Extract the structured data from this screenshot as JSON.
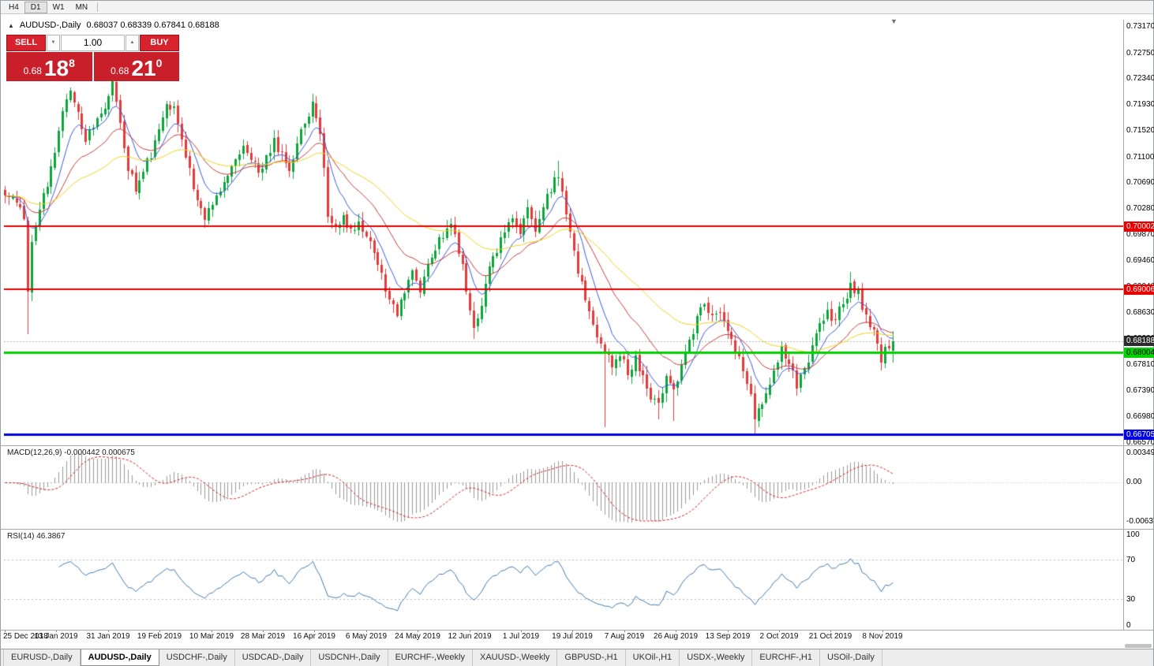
{
  "icons": {
    "one_click_collapse": "▲",
    "chart_shift": "▼",
    "volume_down": "▼",
    "volume_up": "▲"
  },
  "toolbar": {
    "timeframes": [
      "H4",
      "D1",
      "W1",
      "MN"
    ],
    "active_timeframe": "D1"
  },
  "chart_header": {
    "symbol_title": "AUDUSD-,Daily",
    "ohlc_text": "0.68037 0.68339 0.67841 0.68188"
  },
  "trade_panel": {
    "sell_label": "SELL",
    "buy_label": "BUY",
    "volume_value": "1.00",
    "sell_price": {
      "prefix": "0.68",
      "big": "18",
      "sup": "8"
    },
    "buy_price": {
      "prefix": "0.68",
      "big": "21",
      "sup": "0"
    }
  },
  "indicators": {
    "macd": {
      "label": "MACD(12,26,9) -0.000442 0.000675",
      "params": [
        12,
        26,
        9
      ],
      "current_main": -0.000442,
      "current_signal": 0.000675,
      "axis_labels": [
        "0.00349",
        "0.00",
        "-0.00637"
      ]
    },
    "rsi": {
      "label": "RSI(14) 46.3867",
      "period": 14,
      "current": 46.3867,
      "axis_labels": [
        "100",
        "70",
        "30",
        "0"
      ],
      "axis_values": [
        100,
        70,
        30,
        0
      ],
      "level_lines": [
        70,
        30
      ]
    }
  },
  "tabs": [
    {
      "label": "EURUSD-,Daily",
      "active": false
    },
    {
      "label": "AUDUSD-,Daily",
      "active": true
    },
    {
      "label": "USDCHF-,Daily",
      "active": false
    },
    {
      "label": "USDCAD-,Daily",
      "active": false
    },
    {
      "label": "USDCNH-,Daily",
      "active": false
    },
    {
      "label": "EURCHF-,Weekly",
      "active": false
    },
    {
      "label": "XAUUSD-,Weekly",
      "active": false
    },
    {
      "label": "GBPUSD-,H1",
      "active": false
    },
    {
      "label": "UKOil-,H1",
      "active": false
    },
    {
      "label": "USDX-,Weekly",
      "active": false
    },
    {
      "label": "EURCHF-,H1",
      "active": false
    },
    {
      "label": "USOil-,Daily",
      "active": false
    }
  ],
  "chart_data": {
    "type": "candlestick",
    "symbol": "AUDUSD",
    "timeframe": "Daily",
    "price_axis_labels": [
      "0.73170",
      "0.72750",
      "0.72340",
      "0.71930",
      "0.71520",
      "0.71100",
      "0.70690",
      "0.70280",
      "0.69870",
      "0.69460",
      "0.69040",
      "0.68630",
      "0.68220",
      "0.67810",
      "0.67390",
      "0.66980",
      "0.66570"
    ],
    "price_axis_range": {
      "max": 0.7317,
      "min": 0.6657
    },
    "date_axis_labels": [
      "25 Dec 2018",
      "13 Jan 2019",
      "31 Jan 2019",
      "19 Feb 2019",
      "10 Mar 2019",
      "28 Mar 2019",
      "16 Apr 2019",
      "6 May 2019",
      "24 May 2019",
      "12 Jun 2019",
      "1 Jul 2019",
      "19 Jul 2019",
      "7 Aug 2019",
      "26 Aug 2019",
      "13 Sep 2019",
      "2 Oct 2019",
      "21 Oct 2019",
      "8 Nov 2019"
    ],
    "bid": {
      "value": 0.68188,
      "label": "0.68188"
    },
    "last_ohlc": {
      "open": 0.68037,
      "high": 0.68339,
      "low": 0.67841,
      "close": 0.68188
    },
    "levels": [
      {
        "value": 0.70002,
        "label": "0.70002",
        "color": "#e60000",
        "line_width": 2,
        "text_color": "#ffffff"
      },
      {
        "value": 0.69006,
        "label": "0.69006",
        "color": "#e60000",
        "line_width": 2,
        "text_color": "#ffffff"
      },
      {
        "value": 0.68004,
        "label": "0.68004",
        "color": "#00d200",
        "line_width": 3,
        "text_color": "#000000"
      },
      {
        "value": 0.66705,
        "label": "0.66705",
        "color": "#0000e6",
        "line_width": 3,
        "text_color": "#ffffff"
      }
    ],
    "num_candles": 232,
    "price_anchors": [
      [
        0,
        0.7058
      ],
      [
        3,
        0.704
      ],
      [
        5,
        0.7005
      ],
      [
        6,
        0.69
      ],
      [
        7,
        0.6975
      ],
      [
        9,
        0.703
      ],
      [
        11,
        0.707
      ],
      [
        13,
        0.712
      ],
      [
        15,
        0.7185
      ],
      [
        17,
        0.722
      ],
      [
        19,
        0.718
      ],
      [
        21,
        0.7135
      ],
      [
        23,
        0.716
      ],
      [
        26,
        0.7195
      ],
      [
        28,
        0.723
      ],
      [
        30,
        0.7165
      ],
      [
        32,
        0.7095
      ],
      [
        34,
        0.7055
      ],
      [
        36,
        0.7085
      ],
      [
        38,
        0.7115
      ],
      [
        40,
        0.7155
      ],
      [
        42,
        0.72
      ],
      [
        44,
        0.7185
      ],
      [
        46,
        0.713
      ],
      [
        48,
        0.7085
      ],
      [
        50,
        0.705
      ],
      [
        52,
        0.701
      ],
      [
        54,
        0.704
      ],
      [
        56,
        0.7062
      ],
      [
        58,
        0.7082
      ],
      [
        60,
        0.71
      ],
      [
        62,
        0.7122
      ],
      [
        64,
        0.7108
      ],
      [
        66,
        0.7082
      ],
      [
        68,
        0.7108
      ],
      [
        70,
        0.714
      ],
      [
        72,
        0.7112
      ],
      [
        74,
        0.7092
      ],
      [
        76,
        0.7128
      ],
      [
        78,
        0.7168
      ],
      [
        80,
        0.7192
      ],
      [
        82,
        0.715
      ],
      [
        84,
        0.7022
      ],
      [
        86,
        0.6992
      ],
      [
        88,
        0.7012
      ],
      [
        90,
        0.6992
      ],
      [
        92,
        0.7002
      ],
      [
        94,
        0.6986
      ],
      [
        96,
        0.6962
      ],
      [
        98,
        0.6922
      ],
      [
        100,
        0.6882
      ],
      [
        102,
        0.6866
      ],
      [
        104,
        0.6892
      ],
      [
        106,
        0.6922
      ],
      [
        108,
        0.6902
      ],
      [
        110,
        0.6932
      ],
      [
        112,
        0.6962
      ],
      [
        114,
        0.699
      ],
      [
        116,
        0.7002
      ],
      [
        118,
        0.6962
      ],
      [
        120,
        0.6905
      ],
      [
        122,
        0.6832
      ],
      [
        124,
        0.688
      ],
      [
        126,
        0.693
      ],
      [
        128,
        0.6962
      ],
      [
        130,
        0.699
      ],
      [
        132,
        0.7012
      ],
      [
        134,
        0.6992
      ],
      [
        136,
        0.7022
      ],
      [
        138,
        0.6992
      ],
      [
        140,
        0.7032
      ],
      [
        142,
        0.7062
      ],
      [
        144,
        0.7082
      ],
      [
        146,
        0.7022
      ],
      [
        148,
        0.6962
      ],
      [
        150,
        0.6905
      ],
      [
        152,
        0.6872
      ],
      [
        154,
        0.6832
      ],
      [
        156,
        0.6802
      ],
      [
        158,
        0.6782
      ],
      [
        160,
        0.6802
      ],
      [
        162,
        0.6772
      ],
      [
        164,
        0.6792
      ],
      [
        166,
        0.6762
      ],
      [
        168,
        0.6732
      ],
      [
        170,
        0.6712
      ],
      [
        172,
        0.6762
      ],
      [
        174,
        0.6742
      ],
      [
        176,
        0.6782
      ],
      [
        178,
        0.6822
      ],
      [
        180,
        0.6852
      ],
      [
        182,
        0.6882
      ],
      [
        184,
        0.6862
      ],
      [
        186,
        0.6872
      ],
      [
        188,
        0.6832
      ],
      [
        190,
        0.6802
      ],
      [
        192,
        0.6772
      ],
      [
        194,
        0.6732
      ],
      [
        195,
        0.6702
      ],
      [
        196,
        0.6712
      ],
      [
        198,
        0.6742
      ],
      [
        200,
        0.6772
      ],
      [
        202,
        0.6802
      ],
      [
        204,
        0.6782
      ],
      [
        206,
        0.6752
      ],
      [
        208,
        0.6772
      ],
      [
        210,
        0.6812
      ],
      [
        212,
        0.6842
      ],
      [
        214,
        0.6862
      ],
      [
        216,
        0.6852
      ],
      [
        218,
        0.6882
      ],
      [
        220,
        0.6902
      ],
      [
        222,
        0.6892
      ],
      [
        224,
        0.6862
      ],
      [
        226,
        0.6832
      ],
      [
        228,
        0.6792
      ],
      [
        230,
        0.6812
      ],
      [
        231,
        0.68188
      ]
    ],
    "special_lows": [
      [
        6,
        0.683
      ],
      [
        122,
        0.6822
      ],
      [
        156,
        0.6682
      ],
      [
        170,
        0.6695
      ],
      [
        174,
        0.6692
      ],
      [
        195,
        0.6672
      ],
      [
        228,
        0.6772
      ]
    ],
    "special_highs": [
      [
        28,
        0.7238
      ],
      [
        80,
        0.7205
      ],
      [
        144,
        0.7105
      ],
      [
        220,
        0.6928
      ]
    ],
    "moving_averages": [
      {
        "period": 8,
        "color": "#3a5bd9"
      },
      {
        "period": 21,
        "color": "#c23a3a"
      },
      {
        "period": 50,
        "color": "#efd11e"
      }
    ],
    "colors": {
      "up": "#0da43c",
      "down": "#e23b3b",
      "macd_hist": "#9a9a9a",
      "macd_signal": "#cc2222",
      "rsi_line": "#4179ad",
      "bid_line": "#b4b4b4",
      "bid_tag_bg": "#2b2b2b"
    }
  }
}
